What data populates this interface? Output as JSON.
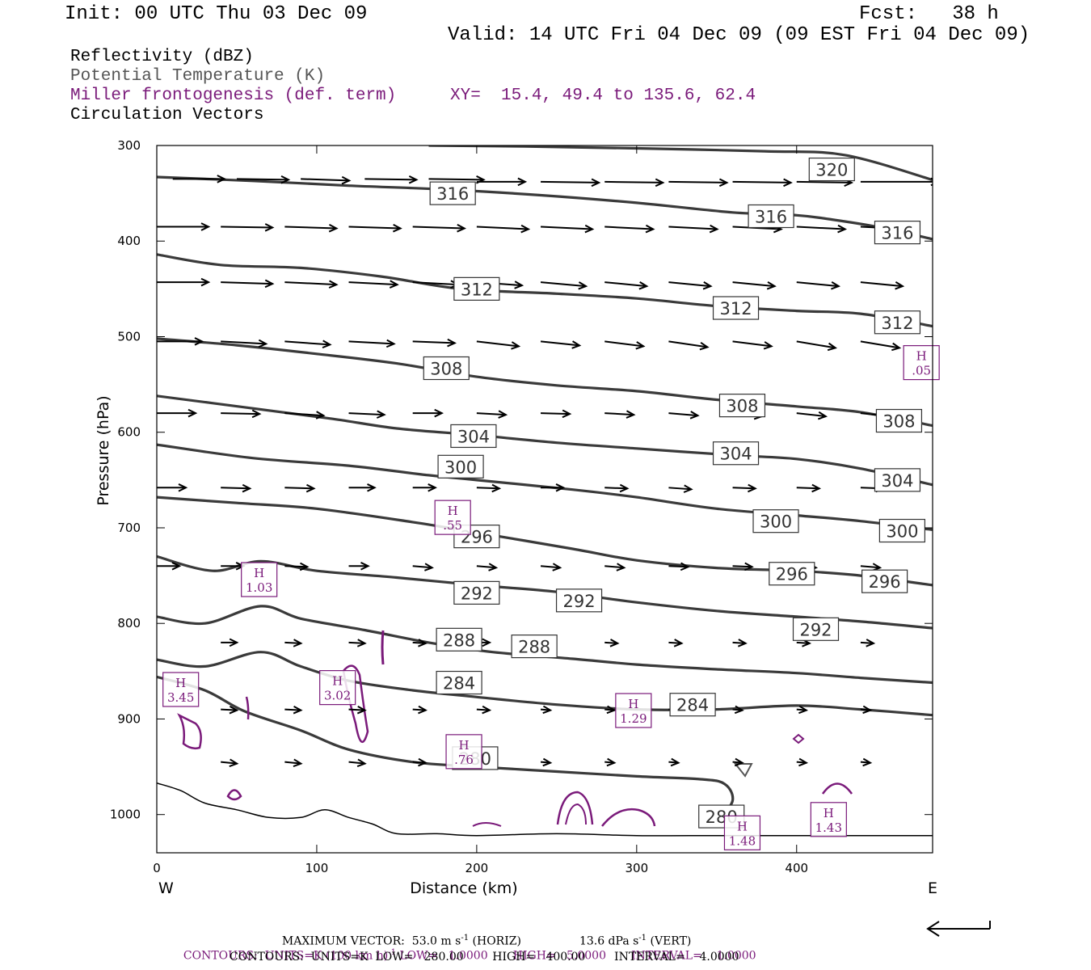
{
  "header": {
    "init": "Init: 00 UTC Thu 03 Dec 09",
    "fcst": "Fcst:   38 h",
    "valid": "Valid: 14 UTC Fri 04 Dec 09 (09 EST Fri 04 Dec 09)"
  },
  "legend": {
    "reflectivity": "Reflectivity (dBZ)",
    "potential_temperature": "Potential Temperature (K)",
    "miller": "Miller frontogenesis (def. term)",
    "xy": "XY=  15.4, 49.4 to 135.6, 62.4",
    "circulation": "Circulation Vectors"
  },
  "colors": {
    "theta": "#3a3a3a",
    "frontogenesis": "#7a1a7a",
    "vectors": "#000000",
    "terrain": "#000000"
  },
  "footer": {
    "max_vector": "MAXIMUM VECTOR:  53.0 m s",
    "max_vector_unit_exp": "-1",
    "max_vector_horiz": " (HORIZ)",
    "max_vector_vert": "13.6 dPa s",
    "max_vector_vert_exp": "-1",
    "max_vector_vert_suffix": " (VERT)",
    "contours1_a": "CONTOURS:  UNITS=K (100 km h)",
    "contours1_exp": "-1",
    "contours1_b": " LOW=   1.0000       HIGH=   5.0000       INTERVAL=    1.0000",
    "contours2": "CONTOURS:  UNITS=K  LOW=   280.00        HIGH=   400.00        INTERVAL=    4.0000"
  },
  "chart_data": {
    "type": "line",
    "xlabel": "Distance (km)",
    "ylabel": "Pressure (hPa)",
    "xlim": [
      0,
      485
    ],
    "ylim": [
      300,
      1040
    ],
    "y_scale": "linear, inverted",
    "x_ticks": [
      0,
      100,
      200,
      300,
      400
    ],
    "y_ticks": [
      300,
      400,
      500,
      600,
      700,
      800,
      900,
      1000
    ],
    "x_end_labels": {
      "left": "W",
      "right": "E"
    },
    "theta_contours": [
      {
        "level": 320,
        "points": [
          [
            170,
            300
          ],
          [
            230,
            301
          ],
          [
            300,
            303
          ],
          [
            380,
            306
          ],
          [
            430,
            310
          ],
          [
            485,
            336
          ]
        ],
        "labels": [
          {
            "text": "320",
            "x": 422,
            "p": 325
          }
        ]
      },
      {
        "level": 316,
        "points": [
          [
            0,
            333
          ],
          [
            60,
            337
          ],
          [
            120,
            342
          ],
          [
            180,
            346
          ],
          [
            240,
            352
          ],
          [
            300,
            360
          ],
          [
            360,
            370
          ],
          [
            400,
            373
          ],
          [
            420,
            377
          ],
          [
            450,
            385
          ],
          [
            485,
            398
          ]
        ],
        "labels": [
          {
            "text": "316",
            "x": 185,
            "p": 350
          },
          {
            "text": "316",
            "x": 384,
            "p": 374
          },
          {
            "text": "316",
            "x": 463,
            "p": 391
          }
        ]
      },
      {
        "level": 312,
        "points": [
          [
            0,
            414
          ],
          [
            40,
            425
          ],
          [
            90,
            428
          ],
          [
            140,
            437
          ],
          [
            190,
            450
          ],
          [
            250,
            455
          ],
          [
            300,
            460
          ],
          [
            350,
            468
          ],
          [
            400,
            473
          ],
          [
            440,
            476
          ],
          [
            485,
            489
          ]
        ],
        "labels": [
          {
            "text": "312",
            "x": 200,
            "p": 450
          },
          {
            "text": "312",
            "x": 362,
            "p": 470
          },
          {
            "text": "312",
            "x": 463,
            "p": 485
          }
        ]
      },
      {
        "level": 308,
        "points": [
          [
            0,
            502
          ],
          [
            50,
            509
          ],
          [
            100,
            518
          ],
          [
            150,
            528
          ],
          [
            200,
            542
          ],
          [
            250,
            551
          ],
          [
            300,
            557
          ],
          [
            350,
            566
          ],
          [
            400,
            573
          ],
          [
            440,
            579
          ],
          [
            485,
            593
          ]
        ],
        "labels": [
          {
            "text": "308",
            "x": 181,
            "p": 533
          },
          {
            "text": "308",
            "x": 366,
            "p": 572
          },
          {
            "text": "308",
            "x": 464,
            "p": 588
          }
        ]
      },
      {
        "level": 304,
        "points": [
          [
            0,
            562
          ],
          [
            60,
            575
          ],
          [
            110,
            586
          ],
          [
            150,
            596
          ],
          [
            200,
            603
          ],
          [
            250,
            611
          ],
          [
            300,
            617
          ],
          [
            360,
            624
          ],
          [
            400,
            628
          ],
          [
            440,
            638
          ],
          [
            485,
            655
          ]
        ],
        "labels": [
          {
            "text": "304",
            "x": 198,
            "p": 604
          },
          {
            "text": "304",
            "x": 362,
            "p": 622
          },
          {
            "text": "304",
            "x": 463,
            "p": 650
          }
        ]
      },
      {
        "level": 300,
        "points": [
          [
            0,
            613
          ],
          [
            60,
            627
          ],
          [
            120,
            635
          ],
          [
            170,
            645
          ],
          [
            200,
            650
          ],
          [
            260,
            660
          ],
          [
            300,
            668
          ],
          [
            350,
            680
          ],
          [
            400,
            687
          ],
          [
            440,
            693
          ],
          [
            485,
            702
          ]
        ],
        "labels": [
          {
            "text": "300",
            "x": 190,
            "p": 636
          },
          {
            "text": "300",
            "x": 387,
            "p": 693
          },
          {
            "text": "300",
            "x": 466,
            "p": 703
          }
        ]
      },
      {
        "level": 296,
        "points": [
          [
            0,
            668
          ],
          [
            50,
            674
          ],
          [
            100,
            680
          ],
          [
            160,
            694
          ],
          [
            200,
            705
          ],
          [
            260,
            722
          ],
          [
            300,
            734
          ],
          [
            350,
            742
          ],
          [
            400,
            745
          ],
          [
            440,
            750
          ],
          [
            485,
            760
          ]
        ],
        "labels": [
          {
            "text": "296",
            "x": 200,
            "p": 709
          },
          {
            "text": "296",
            "x": 397,
            "p": 748
          },
          {
            "text": "296",
            "x": 455,
            "p": 756
          }
        ]
      },
      {
        "level": 292,
        "points": [
          [
            0,
            730
          ],
          [
            35,
            745
          ],
          [
            65,
            735
          ],
          [
            100,
            745
          ],
          [
            150,
            752
          ],
          [
            200,
            760
          ],
          [
            250,
            767
          ],
          [
            300,
            778
          ],
          [
            350,
            787
          ],
          [
            400,
            793
          ],
          [
            440,
            798
          ],
          [
            485,
            805
          ]
        ],
        "labels": [
          {
            "text": "292",
            "x": 200,
            "p": 768
          },
          {
            "text": "292",
            "x": 264,
            "p": 776
          },
          {
            "text": "292",
            "x": 412,
            "p": 806
          }
        ]
      },
      {
        "level": 288,
        "points": [
          [
            0,
            793
          ],
          [
            30,
            800
          ],
          [
            65,
            782
          ],
          [
            90,
            795
          ],
          [
            130,
            807
          ],
          [
            170,
            820
          ],
          [
            210,
            830
          ],
          [
            260,
            837
          ],
          [
            300,
            843
          ],
          [
            350,
            848
          ],
          [
            400,
            852
          ],
          [
            440,
            857
          ],
          [
            485,
            862
          ]
        ],
        "labels": [
          {
            "text": "288",
            "x": 189,
            "p": 817
          },
          {
            "text": "288",
            "x": 236,
            "p": 824
          }
        ]
      },
      {
        "level": 284,
        "points": [
          [
            0,
            838
          ],
          [
            30,
            845
          ],
          [
            65,
            830
          ],
          [
            90,
            845
          ],
          [
            120,
            860
          ],
          [
            160,
            870
          ],
          [
            200,
            877
          ],
          [
            250,
            885
          ],
          [
            300,
            890
          ],
          [
            350,
            890
          ],
          [
            400,
            886
          ],
          [
            440,
            890
          ],
          [
            485,
            896
          ]
        ],
        "labels": [
          {
            "text": "284",
            "x": 189,
            "p": 862
          },
          {
            "text": "284",
            "x": 335,
            "p": 885
          }
        ]
      },
      {
        "level": 280,
        "points": [
          [
            0,
            856
          ],
          [
            30,
            870
          ],
          [
            55,
            892
          ],
          [
            90,
            912
          ],
          [
            120,
            932
          ],
          [
            160,
            945
          ],
          [
            200,
            950
          ],
          [
            250,
            955
          ],
          [
            300,
            960
          ],
          [
            340,
            963
          ],
          [
            355,
            968
          ],
          [
            360,
            985
          ],
          [
            352,
            1005
          ]
        ],
        "labels": [
          {
            "text": "280",
            "x": 199,
            "p": 941
          },
          {
            "text": "280",
            "x": 353,
            "p": 1002
          }
        ]
      }
    ],
    "terrain": [
      [
        0,
        967
      ],
      [
        15,
        975
      ],
      [
        30,
        988
      ],
      [
        50,
        995
      ],
      [
        70,
        1003
      ],
      [
        90,
        1003
      ],
      [
        105,
        995
      ],
      [
        120,
        1003
      ],
      [
        135,
        1010
      ],
      [
        150,
        1020
      ],
      [
        175,
        1020
      ],
      [
        200,
        1022
      ],
      [
        250,
        1020
      ],
      [
        300,
        1022
      ],
      [
        350,
        1022
      ],
      [
        400,
        1022
      ],
      [
        485,
        1022
      ]
    ],
    "frontogenesis_maxima": [
      {
        "value": "3.45",
        "x": 15,
        "p": 870
      },
      {
        "value": "1.03",
        "x": 64,
        "p": 755
      },
      {
        "value": "3.02",
        "x": 113,
        "p": 868
      },
      {
        "value": ".55",
        "x": 185,
        "p": 690
      },
      {
        "value": ".76",
        "x": 192,
        "p": 935
      },
      {
        "value": "1.29",
        "x": 298,
        "p": 892
      },
      {
        "value": "1.48",
        "x": 366,
        "p": 1020
      },
      {
        "value": "1.43",
        "x": 420,
        "p": 1006
      },
      {
        "value": ".05",
        "x": 478,
        "p": 528
      }
    ],
    "vectors": [
      {
        "p": 335,
        "xs": [
          10,
          50,
          90,
          130,
          170
        ],
        "dx": [
          32,
          32,
          30,
          32,
          34
        ],
        "dp": [
          0,
          1,
          2,
          1,
          1
        ]
      },
      {
        "p": 338,
        "xs": [
          200,
          240,
          280,
          320,
          360,
          400,
          440
        ],
        "dx": [
          30,
          36,
          36,
          36,
          36,
          34,
          48
        ],
        "dp": [
          0,
          1,
          1,
          1,
          1,
          1,
          0
        ]
      },
      {
        "p": 385,
        "xs": [
          0,
          40,
          80,
          120,
          160,
          200,
          240,
          280,
          320,
          360,
          400,
          440
        ],
        "dx": [
          32,
          32,
          32,
          32,
          32,
          32,
          32,
          30,
          30,
          30,
          30,
          30
        ],
        "dp": [
          0,
          1,
          2,
          2,
          2,
          3,
          3,
          3,
          3,
          3,
          3,
          3
        ]
      },
      {
        "p": 443,
        "xs": [
          0,
          40,
          80,
          120,
          160,
          200,
          240,
          280,
          320,
          360,
          400,
          440
        ],
        "dx": [
          32,
          32,
          32,
          30,
          28,
          28,
          28,
          26,
          26,
          26,
          26,
          26
        ],
        "dp": [
          0,
          2,
          3,
          3,
          3,
          4,
          5,
          5,
          5,
          5,
          5,
          5
        ]
      },
      {
        "p": 505,
        "xs": [
          0,
          40,
          80,
          120,
          160,
          200,
          240,
          280,
          320,
          360,
          400,
          440
        ],
        "dx": [
          28,
          28,
          28,
          28,
          26,
          26,
          24,
          24,
          24,
          24,
          24,
          24
        ],
        "dp": [
          0,
          3,
          4,
          3,
          2,
          6,
          5,
          6,
          7,
          6,
          8,
          8
        ]
      },
      {
        "p": 580,
        "xs": [
          0,
          40,
          80,
          120,
          160,
          200,
          240,
          280,
          320,
          360,
          400,
          440
        ],
        "dx": [
          24,
          24,
          24,
          22,
          18,
          18,
          18,
          18,
          18,
          18,
          18,
          18
        ],
        "dp": [
          0,
          1,
          3,
          2,
          0,
          2,
          1,
          2,
          3,
          4,
          4,
          4
        ]
      },
      {
        "p": 658,
        "xs": [
          0,
          40,
          80,
          120,
          160,
          200,
          240,
          280,
          320,
          360,
          400,
          440
        ],
        "dx": [
          18,
          18,
          18,
          16,
          14,
          14,
          14,
          14,
          14,
          14,
          14,
          14
        ],
        "dp": [
          0,
          1,
          1,
          0,
          0,
          1,
          0,
          1,
          2,
          1,
          1,
          1
        ]
      },
      {
        "p": 740,
        "xs": [
          0,
          40,
          80,
          120,
          160,
          200,
          240,
          280,
          320,
          360,
          400,
          440
        ],
        "dx": [
          14,
          14,
          14,
          12,
          12,
          12,
          12,
          12,
          12,
          12,
          12,
          12
        ],
        "dp": [
          0,
          0,
          1,
          0,
          2,
          2,
          2,
          2,
          1,
          1,
          2,
          2
        ]
      },
      {
        "p": 820,
        "xs": [
          40,
          80,
          120,
          160,
          200,
          240,
          280,
          320,
          360,
          400,
          440
        ],
        "dx": [
          10,
          10,
          10,
          8,
          8,
          8,
          8,
          8,
          8,
          8,
          8
        ],
        "dp": [
          0,
          1,
          1,
          1,
          0,
          1,
          1,
          1,
          1,
          1,
          1
        ]
      },
      {
        "p": 890,
        "xs": [
          40,
          80,
          120,
          160,
          200,
          240,
          280,
          320,
          360,
          400,
          440
        ],
        "dx": [
          10,
          10,
          10,
          8,
          8,
          6,
          6,
          6,
          6,
          6,
          6
        ],
        "dp": [
          1,
          1,
          1,
          1,
          1,
          1,
          1,
          1,
          1,
          1,
          1
        ]
      },
      {
        "p": 945,
        "xs": [
          40,
          80,
          120,
          160,
          200,
          240,
          280,
          320,
          360,
          400,
          440
        ],
        "dx": [
          10,
          10,
          10,
          8,
          8,
          6,
          6,
          6,
          6,
          6,
          6
        ],
        "dp": [
          2,
          2,
          2,
          1,
          1,
          1,
          1,
          1,
          1,
          1,
          1
        ]
      }
    ]
  }
}
